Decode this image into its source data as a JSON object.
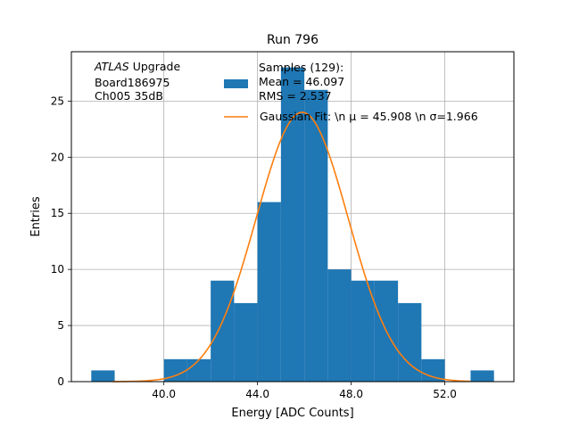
{
  "chart_data": {
    "type": "bar",
    "title": "Run 796",
    "xlabel": "Energy [ADC Counts]",
    "ylabel": "Entries",
    "xlim": [
      36.05,
      54.95
    ],
    "ylim": [
      0,
      29.4
    ],
    "xticks": [
      40.0,
      44.0,
      48.0,
      52.0
    ],
    "xtick_labels": [
      "40.0",
      "44.0",
      "48.0",
      "52.0"
    ],
    "yticks": [
      0,
      5,
      10,
      15,
      20,
      25
    ],
    "ytick_labels": [
      "0",
      "5",
      "10",
      "15",
      "20",
      "25"
    ],
    "grid": true,
    "legend_position": "top-right",
    "annotation": [
      "ATLAS",
      " Upgrade",
      "Board186975",
      "Ch005 35dB"
    ],
    "bins": [
      {
        "x0": 36.9,
        "x1": 37.9,
        "count": 1
      },
      {
        "x0": 40.0,
        "x1": 41.0,
        "count": 2
      },
      {
        "x0": 41.0,
        "x1": 42.0,
        "count": 2
      },
      {
        "x0": 42.0,
        "x1": 43.0,
        "count": 9
      },
      {
        "x0": 43.0,
        "x1": 44.0,
        "count": 7
      },
      {
        "x0": 44.0,
        "x1": 45.0,
        "count": 16
      },
      {
        "x0": 45.0,
        "x1": 46.0,
        "count": 28
      },
      {
        "x0": 46.0,
        "x1": 47.0,
        "count": 26
      },
      {
        "x0": 47.0,
        "x1": 48.0,
        "count": 10
      },
      {
        "x0": 48.0,
        "x1": 49.0,
        "count": 9
      },
      {
        "x0": 49.0,
        "x1": 50.0,
        "count": 9
      },
      {
        "x0": 50.0,
        "x1": 51.0,
        "count": 7
      },
      {
        "x0": 51.0,
        "x1": 52.0,
        "count": 2
      },
      {
        "x0": 53.1,
        "x1": 54.1,
        "count": 1
      }
    ],
    "series": [
      {
        "name": "Samples (129):\n Mean = 46.097\n RMS = 2.537",
        "type": "histogram",
        "color": "#1f77b4"
      },
      {
        "name": "Gaussian Fit: \\n μ = 45.908 \\n σ=1.966",
        "type": "line",
        "color": "#ff7f0e",
        "mu": 45.908,
        "sigma": 1.966,
        "amplitude": 24,
        "x_range": [
          37.8,
          53.1
        ]
      }
    ],
    "legend": [
      {
        "lines": [
          "Samples (129):",
          " Mean = 46.097",
          " RMS = 2.537"
        ],
        "marker": "patch",
        "color": "#1f77b4"
      },
      {
        "lines": [
          "Gaussian Fit: \\n μ = 45.908 \\n σ=1.966"
        ],
        "marker": "line",
        "color": "#ff7f0e"
      }
    ]
  }
}
